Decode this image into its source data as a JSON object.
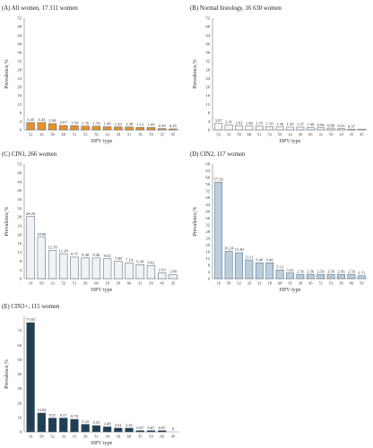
{
  "chart_data": [
    {
      "id": "A",
      "type": "bar",
      "title": "(A)  All women, 17 311 women",
      "xlabel": "HPV type",
      "ylabel": "Prevalence,%",
      "ylim": [
        0,
        52
      ],
      "yticks": [
        0,
        4,
        8,
        12,
        16,
        20,
        24,
        28,
        32,
        36,
        40,
        44,
        48,
        52
      ],
      "categories": [
        "52",
        "16",
        "58",
        "68",
        "51",
        "53",
        "56",
        "33",
        "39",
        "31",
        "18",
        "59",
        "35",
        "45"
      ],
      "values": [
        3.45,
        3.43,
        2.94,
        2.07,
        1.94,
        1.76,
        1.74,
        1.46,
        1.43,
        1.38,
        1.13,
        1.09,
        0.59,
        0.45
      ],
      "labels": [
        "3.45",
        "3.43",
        "2.94",
        "2.07",
        "1.94",
        "1.76",
        "1.74",
        "1.46",
        "1.43",
        "1.38",
        "1.13",
        "1.09",
        "0.59",
        "0.45"
      ],
      "color": "#e8912a"
    },
    {
      "id": "B",
      "type": "bar",
      "title": "(B)  Normal histology, 16 630 women",
      "xlabel": "HPV type",
      "ylabel": "Prevalence,%",
      "ylim": [
        0,
        52
      ],
      "yticks": [
        0,
        4,
        8,
        12,
        16,
        20,
        24,
        28,
        32,
        36,
        40,
        44,
        48,
        52
      ],
      "categories": [
        "52",
        "16",
        "58",
        "68",
        "51",
        "53",
        "56",
        "33",
        "39",
        "66",
        "31",
        "59",
        "18",
        "35",
        "45"
      ],
      "values": [
        3.07,
        2.41,
        2.02,
        1.85,
        1.73,
        1.5,
        1.36,
        1.29,
        1.27,
        1.08,
        0.96,
        0.8,
        0.52,
        0.37,
        0.37
      ],
      "labels": [
        "3.07",
        "2.41",
        "2.02",
        "1.85",
        "1.73",
        "1.50",
        "1.36",
        "1.29",
        "1.27",
        "1.08",
        "0.96",
        "0.80",
        "0.52",
        "0.37",
        ""
      ],
      "color": "#f3f5f7"
    },
    {
      "id": "C",
      "type": "bar",
      "title": "(C)  CIN1, 266 women",
      "xlabel": "HPV type",
      "ylabel": "Prevalence,%",
      "ylim": [
        0,
        52
      ],
      "yticks": [
        0,
        4,
        8,
        12,
        16,
        20,
        24,
        28,
        32,
        36,
        40,
        44,
        48,
        52
      ],
      "categories": [
        "16",
        "58",
        "33",
        "52",
        "51",
        "56",
        "68",
        "18",
        "59",
        "66",
        "31",
        "39",
        "45",
        "35"
      ],
      "values": [
        28.2,
        18.8,
        12.78,
        11.28,
        9.77,
        9.4,
        9.4,
        9.02,
        7.89,
        7.14,
        6.39,
        6.02,
        2.63,
        1.88
      ],
      "labels": [
        "28.20",
        "18.80",
        "12.78",
        "11.28",
        "9.77",
        "9.40",
        "9.40",
        "9.02",
        "7.89",
        "7.14",
        "6.39",
        "6.02",
        "2.63",
        "1.88"
      ],
      "color": "#eef3f8"
    },
    {
      "id": "D",
      "type": "bar",
      "title": "(D)  CIN2, 117 women",
      "xlabel": "HPV type",
      "ylabel": "Prevalence,%",
      "ylim": [
        0,
        68
      ],
      "yticks": [
        0,
        4,
        8,
        12,
        16,
        20,
        24,
        28,
        32,
        36,
        40,
        44,
        48,
        52,
        56,
        60,
        64,
        68
      ],
      "categories": [
        "16",
        "58",
        "52",
        "33",
        "31",
        "18",
        "68",
        "35",
        "39",
        "45",
        "51",
        "53",
        "56",
        "66",
        "59"
      ],
      "values": [
        57.26,
        16.24,
        15.38,
        11.11,
        9.4,
        9.4,
        5.13,
        3.42,
        2.56,
        2.56,
        2.56,
        2.56,
        2.56,
        2.56,
        1.71
      ],
      "labels": [
        "57.26",
        "16.24",
        "15.38",
        "11.11",
        "9.40",
        "9.40",
        "5.13",
        "3.42",
        "2.56",
        "2.56",
        "2.56",
        "2.56",
        "2.56",
        "2.56",
        "1.71"
      ],
      "color": "#b9cfe0"
    },
    {
      "id": "E",
      "type": "bar",
      "title": "(E)  CIN3+, 115 women",
      "xlabel": "HPV type",
      "ylabel": "Prevalence,%",
      "ylim": [
        0,
        80
      ],
      "yticks": [
        0,
        10,
        20,
        30,
        40,
        50,
        60,
        70
      ],
      "categories": [
        "16",
        "58",
        "52",
        "33",
        "31",
        "39",
        "51",
        "18",
        "56",
        "68",
        "35",
        "59",
        "66",
        "45"
      ],
      "values": [
        75.65,
        13.04,
        9.57,
        9.57,
        8.7,
        5.22,
        4.35,
        3.48,
        2.61,
        2.61,
        0.87,
        0.87,
        0.87,
        0
      ],
      "labels": [
        "75.65",
        "13.04",
        "9.57",
        "9.57",
        "8.70",
        "5.22",
        "4.35",
        "3.48",
        "2.61",
        "2.61",
        "0.87",
        "0.87",
        "0.87",
        "0"
      ],
      "color": "#1f3f55"
    }
  ]
}
